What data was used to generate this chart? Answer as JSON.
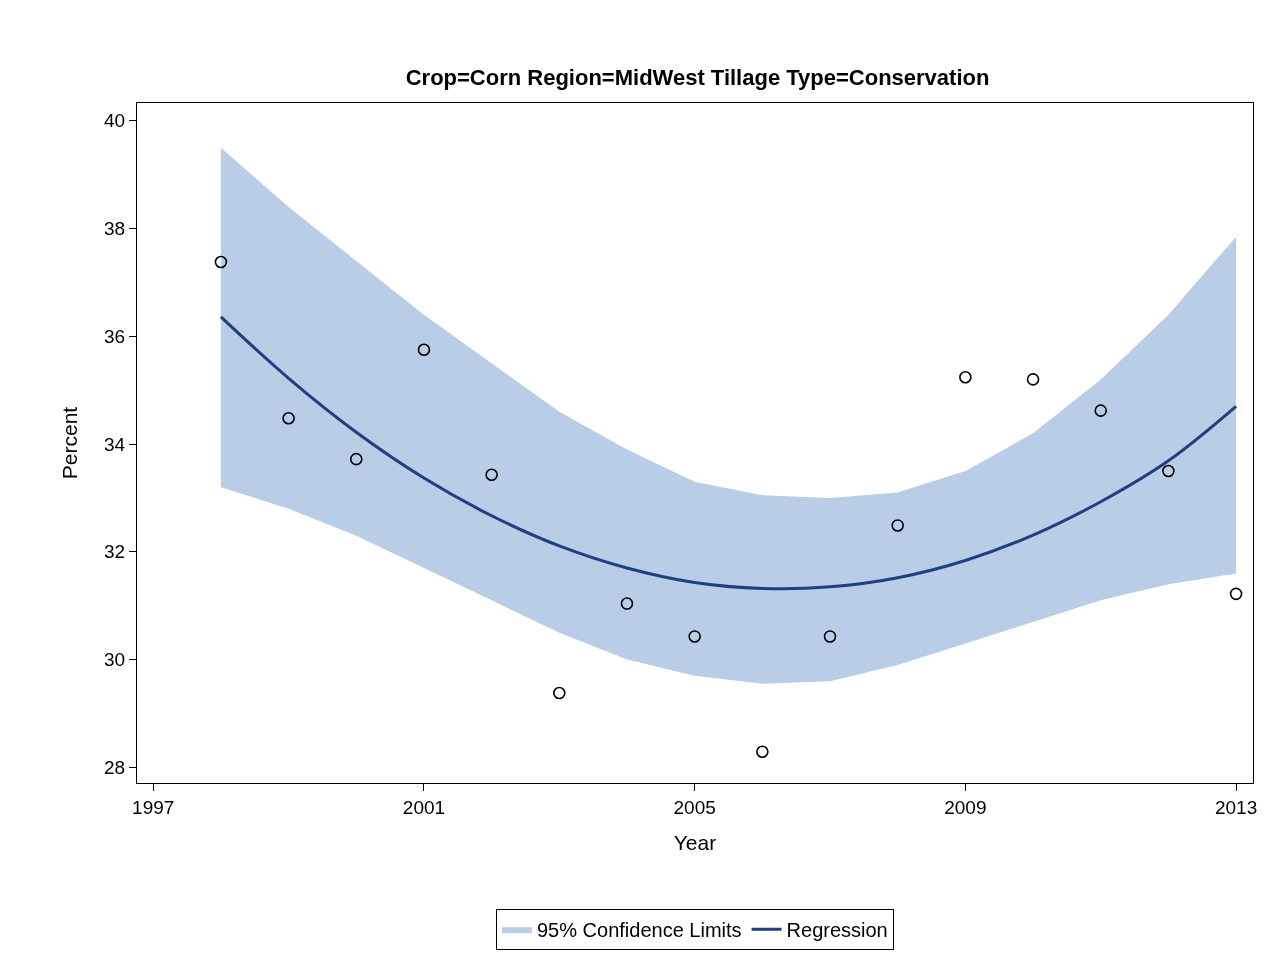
{
  "chart_data": {
    "type": "scatter",
    "title": "Crop=Corn Region=MidWest Tillage Type=Conservation",
    "xlabel": "Year",
    "ylabel": "Percent",
    "x": [
      1998,
      1999,
      2000,
      2001,
      2002,
      2003,
      2004,
      2005,
      2006,
      2007,
      2008,
      2009,
      2010,
      2011,
      2012,
      2013
    ],
    "series": [
      {
        "name": "95% Confidence Limits",
        "type": "area",
        "color": "#b9cde6",
        "values": [
          null,
          null,
          null,
          null,
          null,
          null,
          null,
          null,
          null,
          null,
          null,
          null,
          null,
          null,
          null,
          null
        ],
        "upper": [
          39.5,
          38.4,
          37.4,
          36.4,
          35.5,
          34.6,
          33.9,
          33.3,
          33.05,
          33.0,
          33.1,
          33.5,
          34.2,
          35.2,
          36.4,
          37.85
        ],
        "lower": [
          33.2,
          32.8,
          32.3,
          31.7,
          31.1,
          30.5,
          30.0,
          29.7,
          29.55,
          29.6,
          29.9,
          30.3,
          30.7,
          31.1,
          31.4,
          31.6
        ]
      },
      {
        "name": "Regression",
        "type": "line",
        "color": "#1f3f7f",
        "marker": "none",
        "values": [
          36.36,
          35.22,
          34.22,
          33.37,
          32.67,
          32.11,
          31.7,
          31.43,
          31.32,
          31.35,
          31.52,
          31.84,
          32.31,
          32.93,
          33.69,
          34.7
        ]
      },
      {
        "type": "scatter",
        "color": "#000000",
        "marker": "circle",
        "values": [
          37.38,
          34.48,
          33.72,
          35.75,
          33.43,
          29.38,
          31.04,
          30.43,
          28.29,
          30.43,
          32.49,
          35.24,
          35.2,
          34.62,
          33.5,
          31.22
        ]
      }
    ],
    "xlim": [
      1996.76,
      2013.25
    ],
    "xticks": [
      1997,
      2001,
      2005,
      2009,
      2013
    ],
    "ylim": [
      27.71,
      40.33
    ],
    "yticks": [
      28,
      30,
      32,
      34,
      36,
      38,
      40
    ],
    "legend": "bottom"
  }
}
